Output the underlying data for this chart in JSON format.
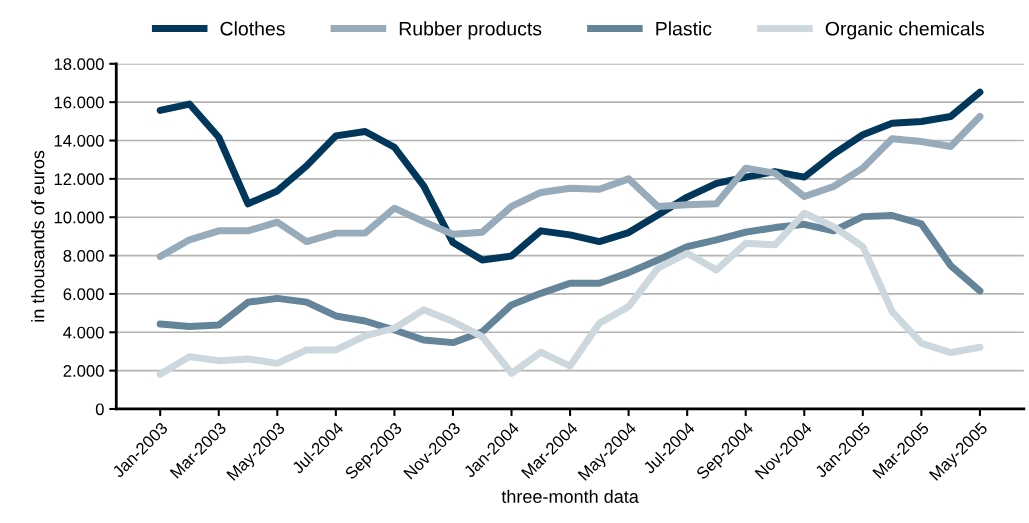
{
  "chart_data": {
    "type": "line",
    "xlabel": "three-month data",
    "ylabel": "in thousands of euros",
    "categories": [
      "Jan-2003",
      null,
      "Mar-2003",
      null,
      "May-2003",
      null,
      "Jul-2004",
      null,
      "Sep-2003",
      null,
      "Nov-2003",
      null,
      "Jan-2004",
      null,
      "Mar-2004",
      null,
      "May-2004",
      null,
      "Jul-2004",
      null,
      "Sep-2004",
      null,
      "Nov-2004",
      null,
      "Jan-2005",
      null,
      "Mar-2005",
      null,
      "May-2005"
    ],
    "series": [
      {
        "name": "Clothes",
        "color": "#00375a",
        "values": [
          15570,
          15900,
          14170,
          10700,
          11370,
          12680,
          14240,
          14470,
          13650,
          11630,
          8680,
          7770,
          7980,
          9290,
          9080,
          8730,
          9200,
          10120,
          11050,
          11770,
          12090,
          12380,
          12090,
          13290,
          14300,
          14900,
          14990,
          15250,
          16520
        ]
      },
      {
        "name": "Rubber products",
        "color": "#97abba",
        "values": [
          7950,
          8820,
          9290,
          9290,
          9740,
          8730,
          9170,
          9170,
          10470,
          9770,
          9110,
          9220,
          10560,
          11290,
          11510,
          11460,
          12000,
          10560,
          10650,
          10700,
          12560,
          12300,
          11080,
          11600,
          12560,
          14090,
          13950,
          13690,
          15250
        ]
      },
      {
        "name": "Plastic",
        "color": "#64849a",
        "values": [
          4430,
          4300,
          4380,
          5570,
          5770,
          5570,
          4850,
          4590,
          4120,
          3600,
          3460,
          4030,
          5430,
          6030,
          6560,
          6560,
          7110,
          7770,
          8470,
          8820,
          9220,
          9460,
          9630,
          9290,
          10030,
          10090,
          9650,
          7480,
          6160
        ]
      },
      {
        "name": "Organic chemicals",
        "color": "#cdd7de",
        "values": [
          1810,
          2730,
          2520,
          2610,
          2380,
          3080,
          3080,
          3810,
          4210,
          5170,
          4560,
          3770,
          1860,
          2960,
          2240,
          4470,
          5340,
          7340,
          8120,
          7250,
          8640,
          8560,
          10210,
          9510,
          8470,
          5080,
          3430,
          2940,
          3220
        ]
      }
    ],
    "ylim": [
      0,
      18000
    ],
    "yticks": [
      {
        "value": 0,
        "label": "0"
      },
      {
        "value": 2000,
        "label": "2.000"
      },
      {
        "value": 4000,
        "label": "4.000"
      },
      {
        "value": 6000,
        "label": "6.000"
      },
      {
        "value": 8000,
        "label": "8.000"
      },
      {
        "value": 10000,
        "label": "10.000"
      },
      {
        "value": 12000,
        "label": "12.000"
      },
      {
        "value": 14000,
        "label": "14.000"
      },
      {
        "value": 16000,
        "label": "16.000"
      },
      {
        "value": 18000,
        "label": "18.000"
      }
    ],
    "grid": "y",
    "legend": "top",
    "marker": "none",
    "line_style": "solid"
  }
}
